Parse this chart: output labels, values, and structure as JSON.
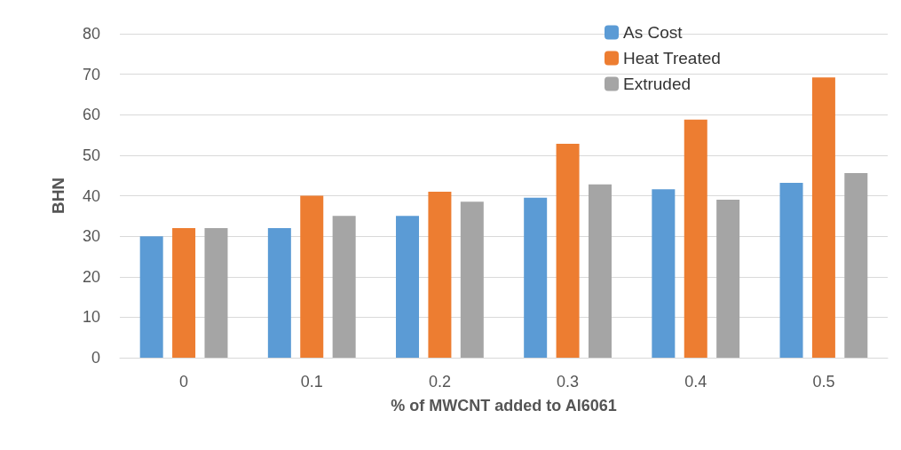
{
  "chart_data": {
    "type": "bar",
    "xlabel": "% of MWCNT added to Al6061",
    "ylabel": "BHN",
    "categories": [
      "0",
      "0.1",
      "0.2",
      "0.3",
      "0.4",
      "0.5"
    ],
    "series": [
      {
        "name": "As Cost",
        "color": "#5b9bd5",
        "values": [
          30,
          32,
          35,
          39.5,
          41.6,
          43.2
        ]
      },
      {
        "name": "Heat Treated",
        "color": "#ed7d31",
        "values": [
          32,
          40,
          41,
          52.8,
          58.8,
          69.2
        ]
      },
      {
        "name": "Extruded",
        "color": "#a5a5a5",
        "values": [
          32,
          35,
          38.5,
          42.8,
          39,
          45.6
        ]
      }
    ],
    "ylim": [
      0,
      80
    ],
    "yticks": [
      0,
      10,
      20,
      30,
      40,
      50,
      60,
      70,
      80
    ],
    "grid": "y",
    "legend": "top right"
  }
}
